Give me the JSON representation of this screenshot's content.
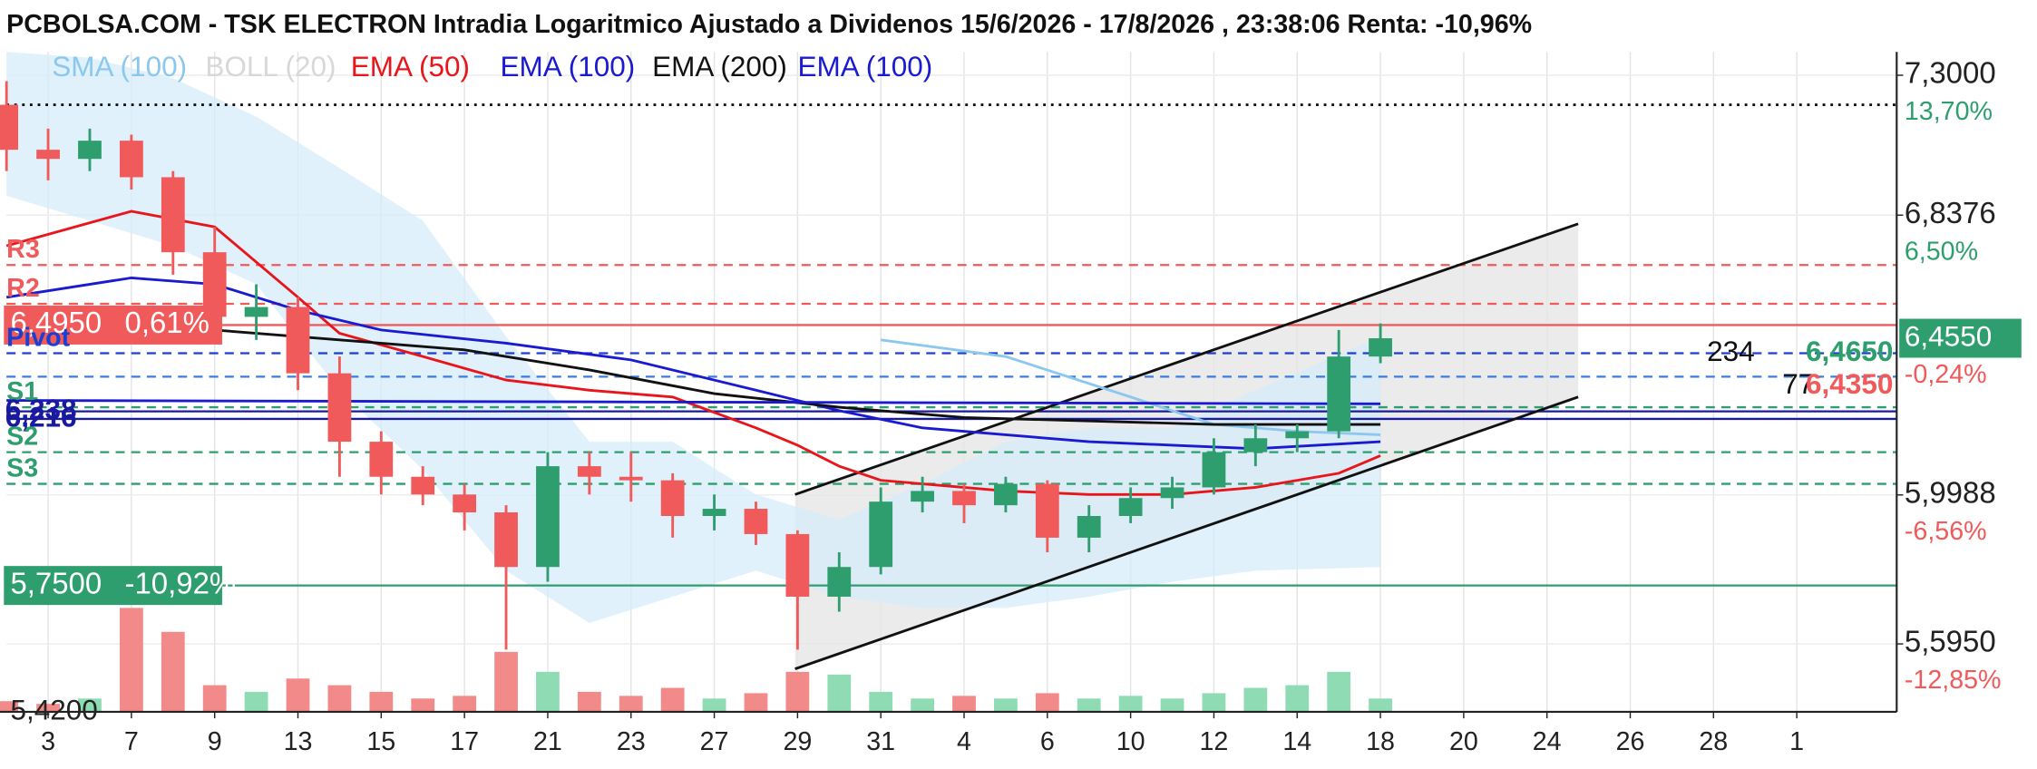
{
  "chart_data": {
    "type": "candlestick",
    "title": "PCBOLSA.COM - TSK ELECTRON Intradia Logaritmico Ajustado a Dividenos 15/6/2026 - 17/8/2026 , 23:38:06 Renta: -10,96%",
    "log_scale": true,
    "grid": true,
    "up_color": "#2e9e6e",
    "down_color": "#f05a5a",
    "volume_up_color": "#8fdcb4",
    "volume_down_color": "#f28a8a",
    "xlim": [
      0,
      45.4
    ],
    "xticks": [
      {
        "value": 1,
        "label": "3"
      },
      {
        "value": 3,
        "label": "7"
      },
      {
        "value": 5,
        "label": "9"
      },
      {
        "value": 7,
        "label": "13"
      },
      {
        "value": 9,
        "label": "15"
      },
      {
        "value": 11,
        "label": "17"
      },
      {
        "value": 13,
        "label": "21"
      },
      {
        "value": 15,
        "label": "23"
      },
      {
        "value": 17,
        "label": "27"
      },
      {
        "value": 19,
        "label": "29"
      },
      {
        "value": 21,
        "label": "31"
      },
      {
        "value": 23,
        "label": "4"
      },
      {
        "value": 25,
        "label": "6"
      },
      {
        "value": 27,
        "label": "10"
      },
      {
        "value": 29,
        "label": "12"
      },
      {
        "value": 31,
        "label": "14"
      },
      {
        "value": 33,
        "label": "18"
      },
      {
        "value": 35,
        "label": "20"
      },
      {
        "value": 37,
        "label": "24"
      },
      {
        "value": 39,
        "label": "26"
      },
      {
        "value": 41,
        "label": "28"
      },
      {
        "value": 43,
        "label": "1"
      }
    ],
    "ylim": [
      5.42,
      7.38
    ],
    "yticks": [
      {
        "value": 7.3,
        "label": "7,3000"
      },
      {
        "value": 6.8376,
        "label": "6,8376"
      },
      {
        "value": 5.9988,
        "label": "5,9988"
      },
      {
        "value": 5.595,
        "label": "5,5950"
      }
    ],
    "ytick_changes": [
      "13,70%",
      "6,50%",
      "-6,56%",
      "-12,85%"
    ],
    "ytick_change_colors": [
      "#2e9e6e",
      "#2e9e6e",
      "#f05a5a",
      "#f05a5a"
    ],
    "bottom_label": {
      "value": 5.42,
      "label": "5,4200"
    },
    "current": {
      "value": 6.455,
      "label": "6,4550",
      "change": "-0,24%",
      "color": "#2e9e6e",
      "change_color": "#f05a5a"
    },
    "x": [
      0,
      1,
      2,
      3,
      4,
      5,
      6,
      7,
      8,
      9,
      10,
      11,
      12,
      13,
      14,
      15,
      16,
      17,
      18,
      19,
      20,
      21,
      22,
      23,
      24,
      25,
      26,
      27,
      28,
      29,
      30,
      31,
      32,
      33
    ],
    "open": [
      7.2,
      7.05,
      7.02,
      7.08,
      6.96,
      6.72,
      6.52,
      6.55,
      6.35,
      6.15,
      6.05,
      6.0,
      5.95,
      5.8,
      6.08,
      6.05,
      6.04,
      5.94,
      5.96,
      5.89,
      5.72,
      5.8,
      5.98,
      6.01,
      5.97,
      6.03,
      5.88,
      5.94,
      5.99,
      6.02,
      6.12,
      6.16,
      6.18,
      6.4
    ],
    "high": [
      7.28,
      7.12,
      7.12,
      7.1,
      6.98,
      6.8,
      6.62,
      6.58,
      6.4,
      6.18,
      6.08,
      6.03,
      5.97,
      6.12,
      6.12,
      6.12,
      6.06,
      6.0,
      5.98,
      5.9,
      5.84,
      6.02,
      6.05,
      6.03,
      6.05,
      6.04,
      5.97,
      6.02,
      6.05,
      6.16,
      6.2,
      6.2,
      6.48,
      6.5
    ],
    "low": [
      6.98,
      6.95,
      6.98,
      6.92,
      6.65,
      6.45,
      6.45,
      6.3,
      6.05,
      6.0,
      5.97,
      5.9,
      5.58,
      5.76,
      6.0,
      5.98,
      5.88,
      5.9,
      5.86,
      5.58,
      5.68,
      5.78,
      5.95,
      5.92,
      5.95,
      5.84,
      5.84,
      5.92,
      5.96,
      6.0,
      6.08,
      6.12,
      6.16,
      6.38
    ],
    "close": [
      7.05,
      7.02,
      7.08,
      6.96,
      6.72,
      6.52,
      6.55,
      6.35,
      6.15,
      6.05,
      6.0,
      5.95,
      5.8,
      6.08,
      6.05,
      6.04,
      5.94,
      5.96,
      5.89,
      5.72,
      5.8,
      5.98,
      6.01,
      5.97,
      6.03,
      5.88,
      5.94,
      5.99,
      6.02,
      6.12,
      6.16,
      6.18,
      6.4,
      6.455
    ],
    "volume": [
      8,
      6,
      10,
      78,
      60,
      20,
      15,
      25,
      20,
      15,
      10,
      12,
      45,
      30,
      15,
      12,
      18,
      10,
      14,
      30,
      28,
      15,
      10,
      12,
      10,
      14,
      10,
      12,
      10,
      14,
      18,
      20,
      30,
      10
    ],
    "series": [
      {
        "name": "SMA (100)",
        "color": "#8cc8ee",
        "x": [
          21,
          24,
          27,
          29,
          31,
          33
        ],
        "values": [
          6.45,
          6.4,
          6.28,
          6.2,
          6.18,
          6.17
        ]
      },
      {
        "name": "BOLL (20)",
        "color": "#d8d8d8",
        "fill": "#d6ecfa",
        "x": [
          0,
          2,
          4,
          6,
          8,
          10,
          12,
          14,
          16,
          18,
          20,
          22,
          24,
          26,
          28,
          30,
          33
        ],
        "upper": [
          7.38,
          7.36,
          7.29,
          7.16,
          6.99,
          6.82,
          6.46,
          6.15,
          6.15,
          6.0,
          5.93,
          6.03,
          6.15,
          6.19,
          6.19,
          6.3,
          6.46
        ],
        "lower": [
          6.9,
          6.82,
          6.74,
          6.62,
          6.3,
          6.07,
          5.79,
          5.65,
          5.72,
          5.79,
          5.72,
          5.69,
          5.69,
          5.72,
          5.76,
          5.79,
          5.8
        ]
      },
      {
        "name": "EMA (50)",
        "color": "#e8161b",
        "x": [
          0,
          3,
          5,
          7,
          8,
          10,
          12,
          14,
          16,
          18,
          19,
          20,
          21,
          22,
          24,
          26,
          28,
          30,
          32,
          33
        ],
        "values": [
          6.74,
          6.85,
          6.8,
          6.58,
          6.47,
          6.4,
          6.33,
          6.3,
          6.28,
          6.19,
          6.14,
          6.08,
          6.04,
          6.03,
          6.01,
          6.0,
          6.0,
          6.02,
          6.06,
          6.11
        ]
      },
      {
        "name": "EMA (100)",
        "color": "#1a1ad0",
        "x": [
          0,
          3,
          5,
          7,
          9,
          12,
          15,
          18,
          20,
          22,
          24,
          26,
          28,
          30,
          33
        ],
        "values": [
          6.58,
          6.64,
          6.62,
          6.54,
          6.48,
          6.44,
          6.39,
          6.3,
          6.24,
          6.19,
          6.17,
          6.15,
          6.14,
          6.13,
          6.15
        ]
      },
      {
        "name": "EMA (200)",
        "color": "#111111",
        "x": [
          0,
          5,
          8,
          11,
          14,
          17,
          20,
          23,
          26,
          29,
          33
        ],
        "values": [
          6.44,
          6.48,
          6.45,
          6.42,
          6.36,
          6.29,
          6.25,
          6.22,
          6.21,
          6.2,
          6.2
        ]
      },
      {
        "name": "EMA (100)",
        "color": "#1a1ad0",
        "x": [
          0,
          33
        ],
        "values": [
          6.27,
          6.26
        ]
      }
    ],
    "channel": {
      "color": "#111111",
      "fill": "#e6e6e6",
      "x": [
        18.94,
        37.75
      ],
      "upper": [
        6.0,
        6.81
      ],
      "lower": [
        5.53,
        6.28
      ]
    },
    "levels": [
      {
        "value": 7.2,
        "color": "#111111",
        "style": "dotted"
      },
      {
        "label": "R3",
        "value": 6.68,
        "color": "#f05a5a",
        "style": "dashed"
      },
      {
        "label": "R2",
        "value": 6.56,
        "color": "#f05a5a",
        "style": "dashed"
      },
      {
        "value": 6.495,
        "color": "#f05a5a",
        "style": "solid",
        "tag": "6,4950",
        "tag_change": "0,61%",
        "boxed": true
      },
      {
        "label": "Pivot",
        "value": 6.41,
        "color": "#1a3fd1",
        "style": "dashed"
      },
      {
        "value": 6.34,
        "color": "#3b7ddd",
        "style": "dashed"
      },
      {
        "label": "S1",
        "value": 6.25,
        "color": "#2e9e6e",
        "style": "dashed"
      },
      {
        "value": 6.238,
        "color": "#1a1aa0",
        "style": "solid",
        "tag": "6,238"
      },
      {
        "value": 6.216,
        "color": "#1a1aa0",
        "style": "solid",
        "tag": "6,216"
      },
      {
        "label": "S2",
        "value": 6.12,
        "color": "#2e9e6e",
        "style": "dashed"
      },
      {
        "label": "S3",
        "value": 6.03,
        "color": "#2e9e6e",
        "style": "dashed"
      },
      {
        "value": 5.75,
        "color": "#2e9e6e",
        "style": "solid",
        "tag": "5,7500",
        "tag_change": "-10,92%",
        "boxed": true
      }
    ],
    "annotations": [
      {
        "text": "234",
        "color": "#111111"
      },
      {
        "text": "6,4650",
        "color": "#2e9e6e"
      },
      {
        "text": "77",
        "color": "#111111"
      },
      {
        "text": "6,4350",
        "color": "#f05a5a"
      }
    ]
  }
}
